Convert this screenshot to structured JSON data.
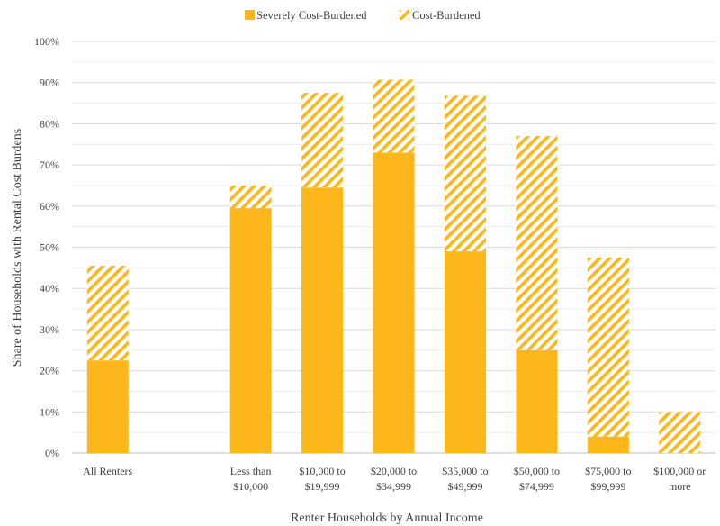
{
  "chart_data": {
    "type": "bar",
    "stacked": true,
    "title": "",
    "xlabel": "Renter Households by Annual Income",
    "ylabel": "Share of Households with Rental Cost Burdens",
    "ylim": [
      0,
      100
    ],
    "yticks": [
      "0%",
      "10%",
      "20%",
      "30%",
      "40%",
      "50%",
      "60%",
      "70%",
      "80%",
      "90%",
      "100%"
    ],
    "grid": true,
    "legend_position": "top",
    "categories": [
      [
        "All Renters"
      ],
      [],
      [
        "Less than",
        "$10,000"
      ],
      [
        "$10,000 to",
        "$19,999"
      ],
      [
        "$20,000 to",
        "$34,999"
      ],
      [
        "$35,000 to",
        "$49,999"
      ],
      [
        "$50,000 to",
        "$74,999"
      ],
      [
        "$75,000 to",
        "$99,999"
      ],
      [
        "$100,000 or",
        "more"
      ]
    ],
    "series": [
      {
        "name": "Severely Cost-Burdened",
        "pattern": "solid",
        "color": "#FDB71A",
        "values": [
          22.5,
          null,
          59.5,
          64.5,
          73,
          49,
          25,
          4,
          0
        ]
      },
      {
        "name": "Cost-Burdened",
        "pattern": "hatched",
        "color": "#FDB71A",
        "values": [
          23,
          null,
          5.5,
          23,
          17.7,
          37.8,
          52,
          43.5,
          10
        ]
      }
    ]
  }
}
